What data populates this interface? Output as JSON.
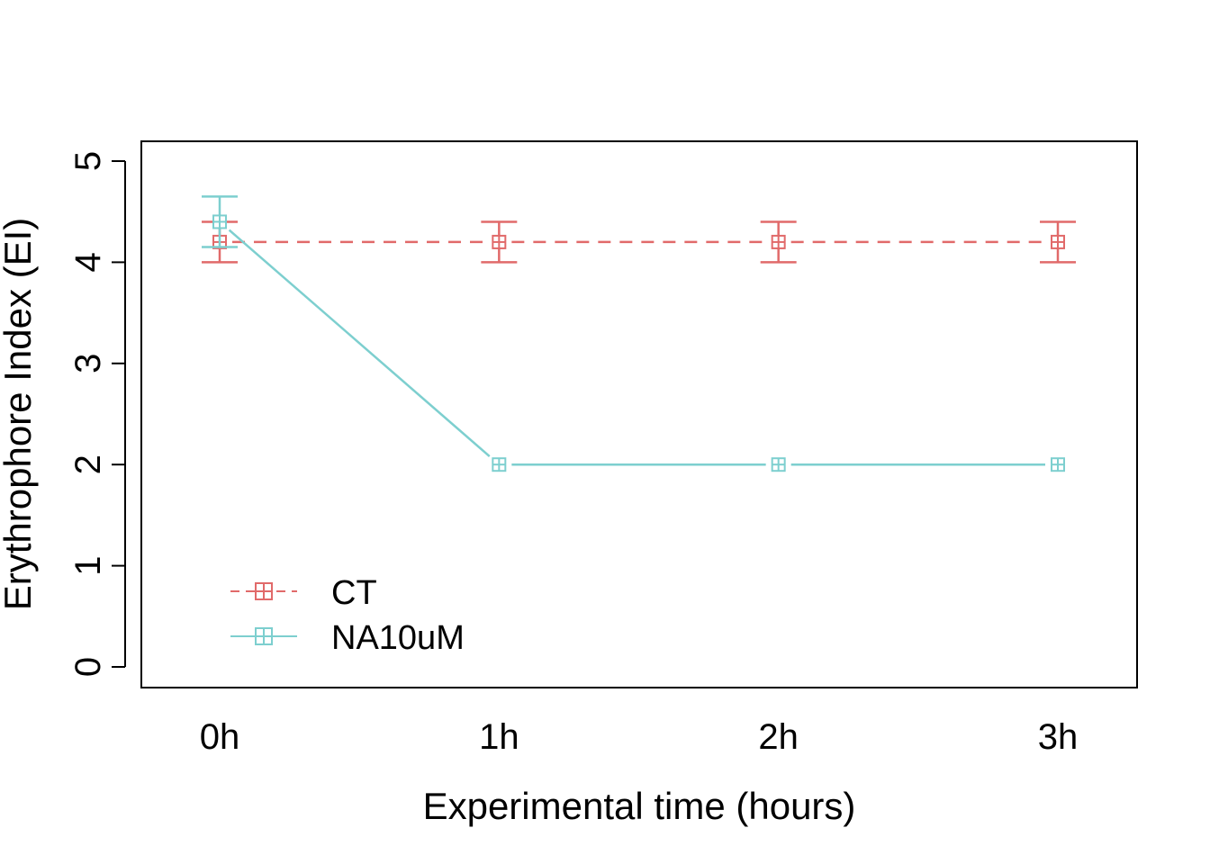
{
  "chart_data": {
    "type": "line",
    "title": "",
    "xlabel": "Experimental time (hours)",
    "ylabel": "Erythrophore Index (EI)",
    "categories": [
      "0h",
      "1h",
      "2h",
      "3h"
    ],
    "y_ticks": [
      "0",
      "1",
      "2",
      "3",
      "4",
      "5"
    ],
    "ylim": [
      -0.2,
      5.2
    ],
    "grid": false,
    "legend_position": "bottom-left",
    "series": [
      {
        "name": "CT",
        "values": [
          4.2,
          4.2,
          4.2,
          4.2
        ],
        "error": [
          0.2,
          0.2,
          0.2,
          0.2
        ],
        "color": "#E16A6A",
        "line_style": "dashed",
        "marker": "boxed-plus"
      },
      {
        "name": "NA10uM",
        "values": [
          4.4,
          2.0,
          2.0,
          2.0
        ],
        "error": [
          0.25,
          0,
          0,
          0
        ],
        "color": "#7DCFCF",
        "line_style": "solid",
        "marker": "boxed-plus"
      }
    ]
  }
}
